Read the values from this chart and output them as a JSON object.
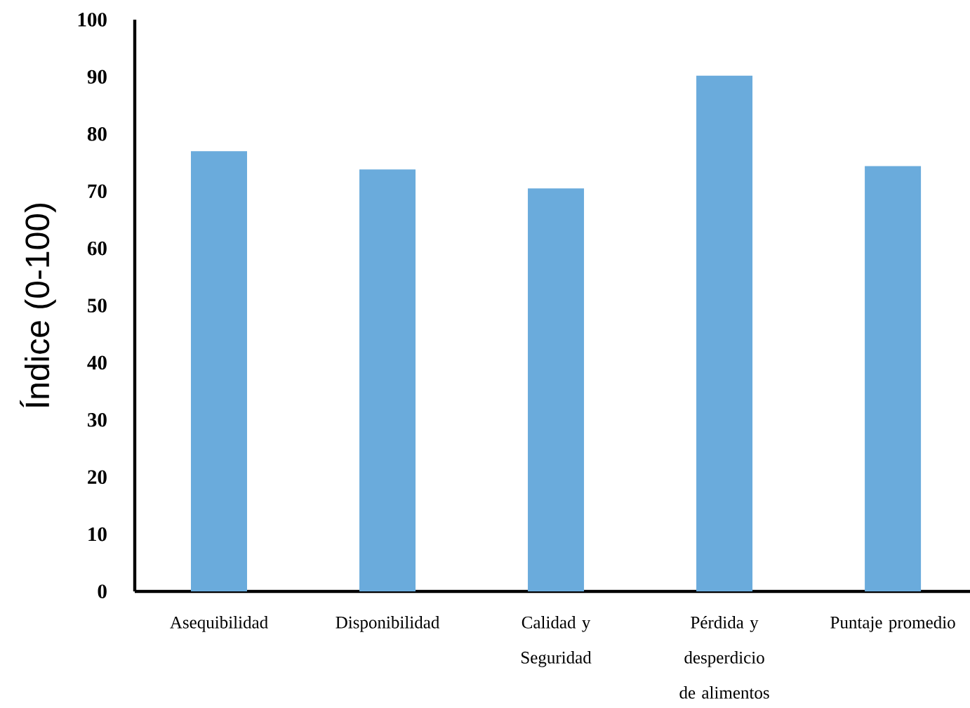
{
  "chart_data": {
    "type": "bar",
    "ylabel": "Índice (0-100)",
    "categories": [
      "Asequibilidad",
      "Disponibilidad",
      "Calidad y Seguridad",
      "Pérdida y desperdicio de alimentos",
      "Puntaje promedio"
    ],
    "values": [
      77,
      73.8,
      70.5,
      90.2,
      74.4
    ],
    "color": "#6aabdc",
    "ylim": [
      0,
      100
    ],
    "yticks": [
      0,
      10,
      20,
      30,
      40,
      50,
      60,
      70,
      80,
      90,
      100
    ]
  }
}
